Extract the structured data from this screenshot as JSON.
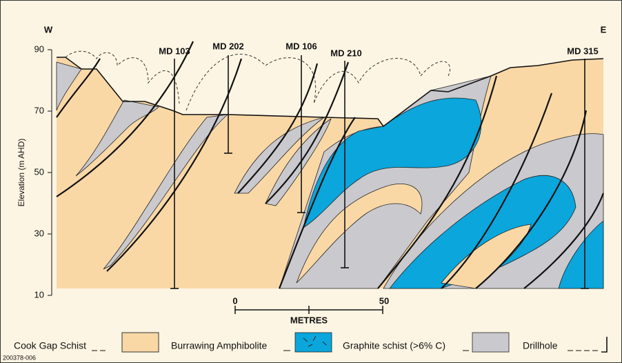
{
  "header": {
    "west": "W",
    "east": "E"
  },
  "drillholes": [
    {
      "label": "MD 103"
    },
    {
      "label": "MD 202"
    },
    {
      "label": "MD 106"
    },
    {
      "label": "MD 210"
    },
    {
      "label": "MD 315"
    }
  ],
  "axis": {
    "label": "Elevation (m AHD)",
    "ticks": [
      90,
      70,
      50,
      30,
      10
    ]
  },
  "scale": {
    "start": "0",
    "end": "50",
    "unit": "METRES"
  },
  "legend": [
    {
      "label": "Cook Gap Schist"
    },
    {
      "label": "Burrawing Amphibolite"
    },
    {
      "label": "Graphite schist (>6% C)"
    },
    {
      "label": "Drillhole"
    }
  ],
  "figure_id": "200378-006"
}
